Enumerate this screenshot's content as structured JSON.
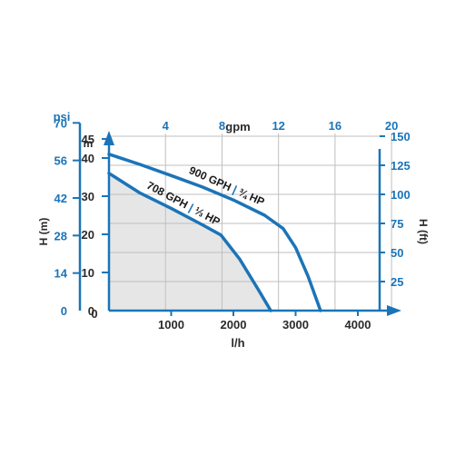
{
  "chart_data": {
    "type": "line",
    "colors": {
      "axis": "#1b74b8",
      "curve": "#1b74b8",
      "shade": "#e6e6e6",
      "grid": "#bfbfbf"
    },
    "grid": true,
    "x_axis_bottom": {
      "label": "l/h",
      "range": [
        0,
        4400
      ],
      "ticks": [
        0,
        1000,
        2000,
        3000,
        4000
      ]
    },
    "x_axis_top": {
      "label": "gpm",
      "range": [
        0,
        20
      ],
      "ticks": [
        4,
        8,
        12,
        16,
        20
      ]
    },
    "y_axis_m": {
      "label": "m",
      "range": [
        0,
        45
      ],
      "ticks": [
        0,
        10,
        20,
        30,
        40,
        45
      ]
    },
    "y_axis_psi": {
      "label": "psi",
      "range": [
        0,
        70
      ],
      "ticks": [
        0,
        14,
        28,
        42,
        56,
        70
      ]
    },
    "y_axis_left_title": "H (m)",
    "y_axis_right": {
      "label": "H (ft)",
      "range": [
        0,
        150
      ],
      "ticks": [
        25,
        50,
        75,
        100,
        125,
        150
      ]
    },
    "series": [
      {
        "name": "900 GPH",
        "hp": "¾ HP",
        "x": [
          0,
          500,
          1000,
          1500,
          2000,
          2500,
          2800,
          3000,
          3200,
          3400
        ],
        "y": [
          41,
          38.3,
          35.4,
          32.4,
          29,
          25,
          21.5,
          16.5,
          9,
          0
        ]
      },
      {
        "name": "708 GPH",
        "hp": "⅓ HP",
        "x": [
          0,
          500,
          1000,
          1500,
          1800,
          2100,
          2400,
          2600
        ],
        "y": [
          36,
          30.8,
          26.8,
          22.5,
          19.8,
          13.5,
          5.5,
          0
        ]
      }
    ]
  }
}
